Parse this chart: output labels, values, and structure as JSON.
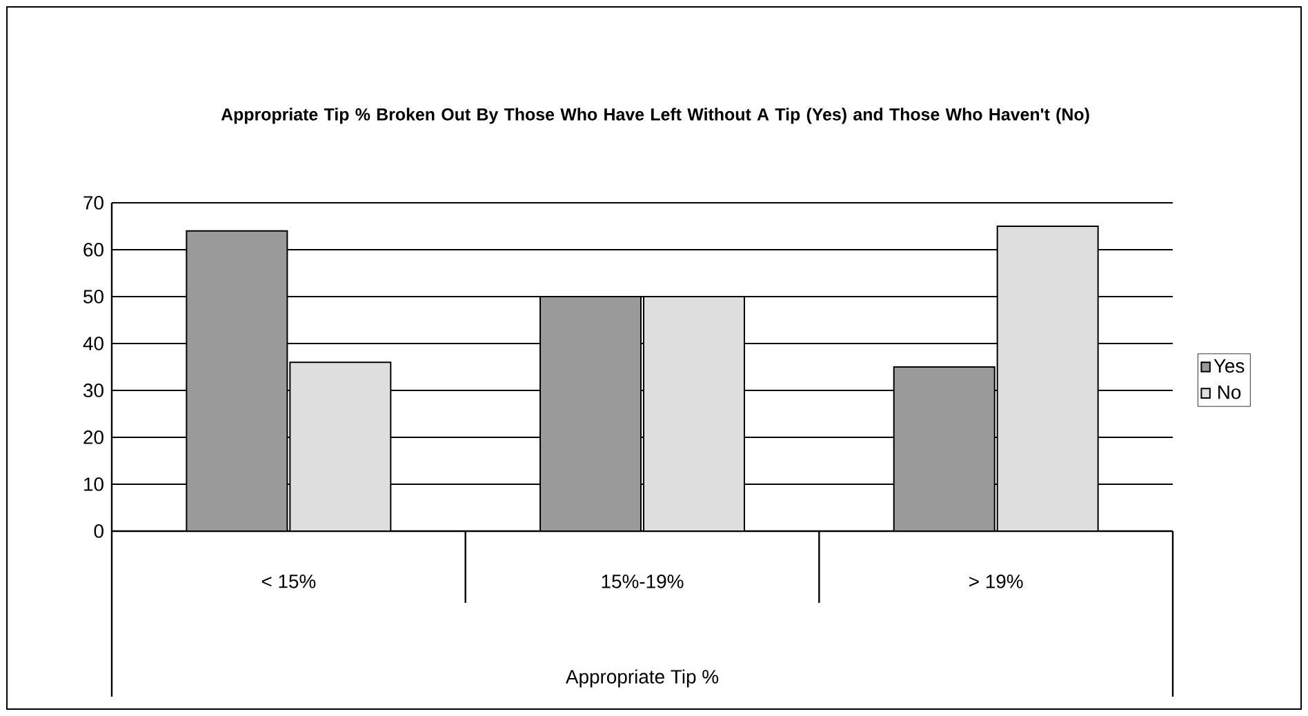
{
  "chart_data": {
    "type": "bar",
    "title": "Appropriate Tip % Broken Out By Those Who Have Left Without A Tip (Yes) and Those Who Haven't (No)",
    "xlabel": "Appropriate Tip %",
    "categories": [
      "< 15%",
      "15%-19%",
      "> 19%"
    ],
    "series": [
      {
        "name": "Yes",
        "color": "#9a9a9a",
        "values": [
          64,
          50,
          35
        ]
      },
      {
        "name": "No",
        "color": "#dedede",
        "values": [
          36,
          50,
          65
        ]
      }
    ],
    "ylim": [
      0,
      70
    ],
    "yticks": [
      0,
      10,
      20,
      30,
      40,
      50,
      60,
      70
    ],
    "grid": "y",
    "legend": "right"
  }
}
